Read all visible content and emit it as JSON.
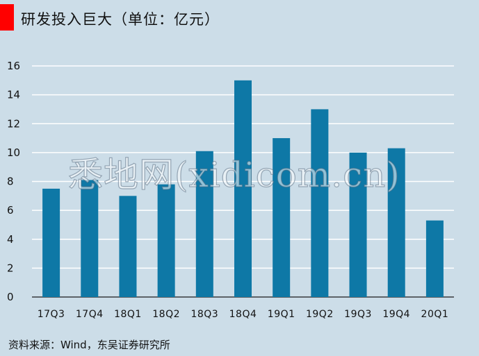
{
  "header": {
    "title": "研发投入巨大（单位：亿元）",
    "accent_color": "#ff0000"
  },
  "watermark": {
    "text": "悉地网(xidicom.cn)"
  },
  "source": {
    "text": "资料来源：Wind，东吴证券研究所"
  },
  "chart_data": {
    "type": "bar",
    "title": "研发投入巨大（单位：亿元）",
    "categories": [
      "17Q3",
      "17Q4",
      "18Q1",
      "18Q2",
      "18Q3",
      "18Q4",
      "19Q1",
      "19Q2",
      "19Q3",
      "19Q4",
      "20Q1"
    ],
    "values": [
      7.5,
      8.1,
      7.0,
      7.8,
      10.1,
      15.0,
      11.0,
      13.0,
      10.0,
      10.3,
      5.3
    ],
    "y_ticks": [
      "0",
      "2",
      "4",
      "6",
      "8",
      "10",
      "12",
      "14",
      "16"
    ],
    "ylim": [
      0,
      16
    ],
    "grid": true,
    "legend": "none",
    "bar_color": "#0e78a6",
    "grid_color": "#ffffff"
  }
}
